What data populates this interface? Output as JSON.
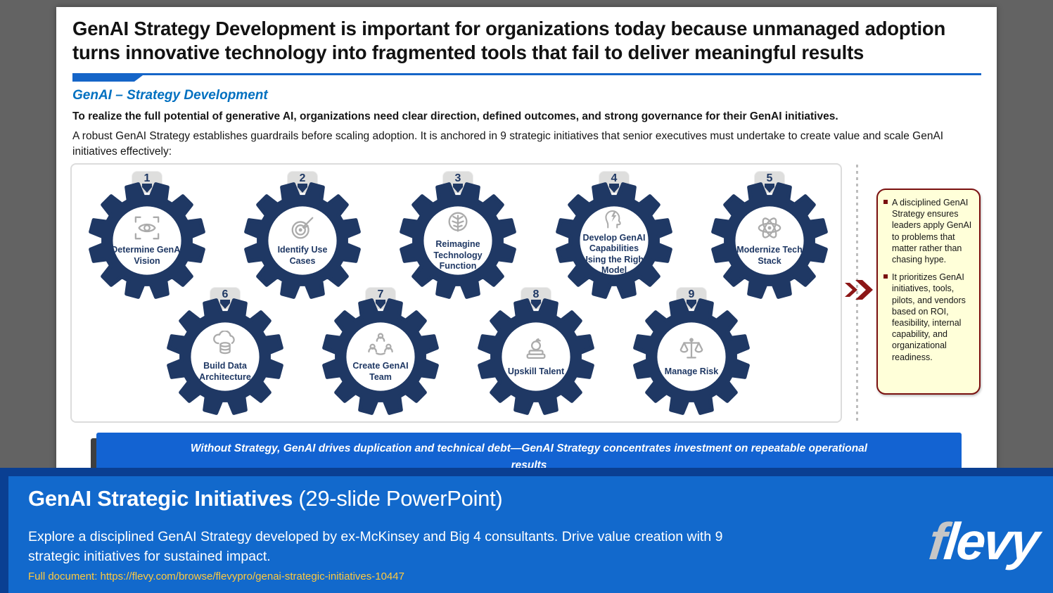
{
  "slide": {
    "title": "GenAI Strategy Development is important for organizations today because unmanaged adoption turns innovative technology into fragmented tools that fail to deliver meaningful results",
    "section_heading": "GenAI – Strategy Development",
    "intro_bold": "To realize the full potential of generative AI, organizations need clear direction, defined outcomes, and strong governance for their GenAI initiatives.",
    "intro_text": "A robust GenAI Strategy establishes guardrails before scaling adoption. It is anchored in 9 strategic initiatives that senior executives must undertake to create value and scale GenAI initiatives effectively:",
    "initiatives": [
      {
        "number": "1",
        "label": "Determine GenAI Vision",
        "icon": "vision-eye-icon"
      },
      {
        "number": "2",
        "label": "Identify Use Cases",
        "icon": "target-icon"
      },
      {
        "number": "3",
        "label": "Reimagine Technology Function",
        "icon": "brain-icon"
      },
      {
        "number": "4",
        "label": "Develop GenAI Capabilities Using the Right Model",
        "icon": "head-bolt-icon"
      },
      {
        "number": "5",
        "label": "Modernize Tech Stack",
        "icon": "atom-icon"
      },
      {
        "number": "6",
        "label": "Build Data Architecture",
        "icon": "cloud-database-icon"
      },
      {
        "number": "7",
        "label": "Create GenAI Team",
        "icon": "team-icon"
      },
      {
        "number": "8",
        "label": "Upskill Talent",
        "icon": "education-icon"
      },
      {
        "number": "9",
        "label": "Manage Risk",
        "icon": "scales-icon"
      }
    ],
    "callout": {
      "bullets": [
        "A disciplined GenAI Strategy ensures leaders apply GenAI to problems that matter rather than chasing hype.",
        "It prioritizes GenAI initiatives, tools, pilots, and vendors based on ROI, feasibility, internal capability, and organizational readiness."
      ]
    },
    "banner": "Without Strategy, GenAI drives duplication and technical debt—GenAI Strategy concentrates investment on repeatable operational results"
  },
  "overlay": {
    "title_main": "GenAI Strategic Initiatives",
    "title_suffix": " (29-slide PowerPoint)",
    "description": "Explore a disciplined GenAI Strategy developed by ex-McKinsey and Big 4 consultants. Drive value creation with 9 strategic initiatives for sustained impact.",
    "link": "Full document: https://flevy.com/browse/flevypro/genai-strategic-initiatives-10447",
    "logo_f": "f",
    "logo_rest": "levy"
  },
  "colors": {
    "background_gray": "#636363",
    "slide_white": "#ffffff",
    "accent_blue": "#1565c8",
    "heading_blue": "#0070C0",
    "gear_navy": "#1F3864",
    "icon_gray": "#ABABAB",
    "tab_gray": "#dededd",
    "callout_bg": "#FFFFD9",
    "callout_border": "#7A1010",
    "banner_blue": "#1363D2",
    "overlay_navy": "#0A3F92",
    "overlay_blue": "#1269CC",
    "link_gold": "#FFC93E"
  }
}
